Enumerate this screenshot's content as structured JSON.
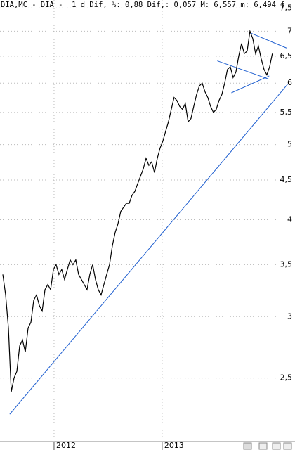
{
  "chart_data": {
    "type": "line",
    "title": "DIA,MC - DIA -  1 d Dif, %: 0,88 Dif,: 0,057 M: 6,557 m: 6,494 f",
    "log_scale": true,
    "grid": true,
    "color": "#000000",
    "x": [
      2011.526,
      2011.552,
      2011.578,
      2011.604,
      2011.63,
      2011.656,
      2011.682,
      2011.708,
      2011.734,
      2011.76,
      2011.786,
      2011.812,
      2011.838,
      2011.864,
      2011.89,
      2011.916,
      2011.942,
      2011.968,
      2011.994,
      2012.019,
      2012.045,
      2012.071,
      2012.097,
      2012.123,
      2012.149,
      2012.175,
      2012.201,
      2012.227,
      2012.253,
      2012.279,
      2012.305,
      2012.331,
      2012.357,
      2012.383,
      2012.409,
      2012.435,
      2012.461,
      2012.487,
      2012.513,
      2012.539,
      2012.565,
      2012.591,
      2012.617,
      2012.643,
      2012.669,
      2012.695,
      2012.721,
      2012.747,
      2012.773,
      2012.799,
      2012.825,
      2012.851,
      2012.877,
      2012.903,
      2012.929,
      2012.955,
      2012.981,
      2013.006,
      2013.032,
      2013.058,
      2013.084,
      2013.11,
      2013.136,
      2013.162,
      2013.188,
      2013.214,
      2013.24,
      2013.266,
      2013.292,
      2013.318,
      2013.344,
      2013.37,
      2013.396,
      2013.422,
      2013.448,
      2013.474,
      2013.5,
      2013.526,
      2013.552,
      2013.578,
      2013.604,
      2013.63,
      2013.656,
      2013.682,
      2013.708,
      2013.734,
      2013.76,
      2013.786,
      2013.812,
      2013.838,
      2013.864,
      2013.89,
      2013.916,
      2013.942,
      2013.968,
      2013.994,
      2014.019
    ],
    "values": [
      3.4,
      3.2,
      2.9,
      2.4,
      2.5,
      2.55,
      2.75,
      2.8,
      2.7,
      2.9,
      2.95,
      3.15,
      3.2,
      3.1,
      3.05,
      3.25,
      3.3,
      3.25,
      3.45,
      3.5,
      3.4,
      3.45,
      3.35,
      3.45,
      3.55,
      3.5,
      3.55,
      3.4,
      3.35,
      3.3,
      3.25,
      3.4,
      3.5,
      3.35,
      3.25,
      3.2,
      3.3,
      3.4,
      3.5,
      3.7,
      3.85,
      3.95,
      4.1,
      4.15,
      4.2,
      4.2,
      4.3,
      4.35,
      4.45,
      4.55,
      4.65,
      4.8,
      4.7,
      4.75,
      4.6,
      4.8,
      4.95,
      5.05,
      5.2,
      5.35,
      5.55,
      5.75,
      5.7,
      5.6,
      5.55,
      5.65,
      5.35,
      5.4,
      5.6,
      5.8,
      5.95,
      6.0,
      5.85,
      5.75,
      5.6,
      5.5,
      5.55,
      5.7,
      5.8,
      6.0,
      6.25,
      6.3,
      6.1,
      6.2,
      6.5,
      6.75,
      6.55,
      6.6,
      7.0,
      6.85,
      6.55,
      6.7,
      6.45,
      6.25,
      6.15,
      6.3,
      6.55
    ],
    "trendlines": [
      {
        "color": "#1f5fd0",
        "x": [
          2011.59,
          2014.16
        ],
        "values": [
          2.245,
          5.98
        ]
      },
      {
        "color": "#1f5fd0",
        "x": [
          2013.51,
          2013.99
        ],
        "values": [
          6.41,
          6.07
        ]
      },
      {
        "color": "#1f5fd0",
        "x": [
          2013.64,
          2013.99
        ],
        "values": [
          5.83,
          6.13
        ]
      },
      {
        "color": "#1f5fd0",
        "x": [
          2013.81,
          2014.15
        ],
        "values": [
          6.97,
          6.66
        ]
      }
    ],
    "xlim": [
      2011.5,
      2014.17
    ],
    "xticks": [
      2012,
      2013
    ],
    "ylim": [
      2.07,
      7.68
    ],
    "yticks": [
      {
        "value": 2.5,
        "label": "2,5"
      },
      3,
      {
        "value": 3.5,
        "label": "3,5"
      },
      4,
      {
        "value": 4.5,
        "label": "4,5"
      },
      5,
      {
        "value": 5.5,
        "label": "5,5"
      },
      6,
      {
        "value": 6.5,
        "label": "6,5"
      },
      7,
      {
        "value": 7.5,
        "label": "7,5"
      }
    ]
  }
}
